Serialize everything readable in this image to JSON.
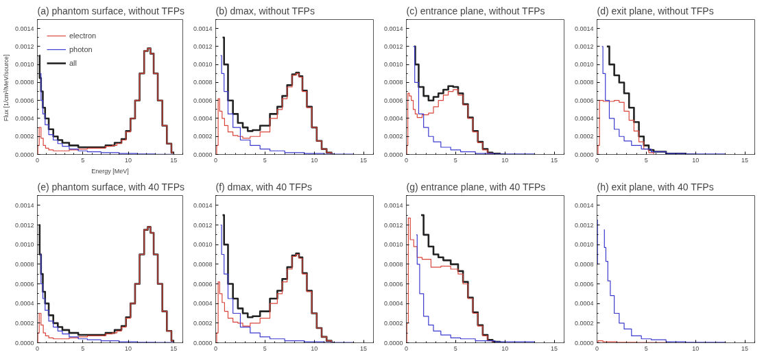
{
  "chart_data": [
    {
      "type": "step",
      "title": "(a) phantom surface, without TFPs",
      "xlabel": "Energy [MeV]",
      "ylabel": "Flux  [1/cm²/MeV/source]",
      "legend": "top left",
      "xlim": [
        0,
        16
      ],
      "xticks": [
        0,
        5,
        10,
        15
      ],
      "ylim": [
        0,
        0.0015
      ],
      "yticks": [
        {
          "value": 0,
          "label": "0.0000"
        },
        {
          "value": 0.0002,
          "label": "0.0002"
        },
        {
          "value": 0.0004,
          "label": "0.0004"
        },
        {
          "value": 0.0006,
          "label": "0.0006"
        },
        {
          "value": 0.0008,
          "label": "0.0008"
        },
        {
          "value": 0.001,
          "label": "0.0010"
        },
        {
          "value": 0.0012,
          "label": "0.0012"
        },
        {
          "value": 0.0014,
          "label": "0.0014"
        }
      ],
      "series": [
        {
          "name": "electron",
          "color": "#d9453a",
          "x": [
            0,
            0.1,
            0.3,
            0.5,
            0.8,
            1,
            1.5,
            2,
            3,
            4,
            5,
            6,
            7,
            8,
            8.5,
            9,
            9.5,
            10,
            10.5,
            11,
            11.5,
            12,
            12.3,
            12.6,
            13,
            13.5,
            14,
            14.5,
            15
          ],
          "values": [
            0,
            0.0001,
            0.0003,
            0.00018,
            0.0001,
            7e-05,
            5e-05,
            4e-05,
            4e-05,
            5e-05,
            6e-05,
            7e-05,
            7e-05,
            9e-05,
            0.0001,
            0.00012,
            0.00016,
            0.00025,
            0.0004,
            0.0006,
            0.0009,
            0.00115,
            0.00118,
            0.00112,
            0.0009,
            0.0006,
            0.00032,
            0.00012,
            2e-05
          ]
        },
        {
          "name": "photon",
          "color": "#3a3ad0",
          "x": [
            0.3,
            0.5,
            0.7,
            1,
            1.5,
            2,
            2.5,
            3,
            4,
            5,
            6,
            8,
            10,
            12,
            14,
            16
          ],
          "values": [
            0.0009,
            0.0006,
            0.00045,
            0.00033,
            0.00022,
            0.00016,
            0.00012,
            9e-05,
            6e-05,
            4e-05,
            3e-05,
            2e-05,
            1e-05,
            5e-06,
            2e-06,
            0
          ]
        },
        {
          "name": "all",
          "color": "#222222",
          "x": [
            0.2,
            0.3,
            0.5,
            0.7,
            1,
            1.5,
            2,
            2.5,
            3,
            4,
            5,
            6,
            7,
            8,
            9,
            9.5,
            10,
            10.5,
            11,
            11.5,
            12,
            12.3,
            12.6,
            13,
            13.5,
            14,
            14.5,
            15
          ],
          "values": [
            0.0011,
            0.00085,
            0.0007,
            0.00052,
            0.0004,
            0.00028,
            0.0002,
            0.00016,
            0.00013,
            0.0001,
            8e-05,
            8e-05,
            8e-05,
            0.0001,
            0.00013,
            0.00017,
            0.00026,
            0.0004,
            0.0006,
            0.0009,
            0.00115,
            0.00118,
            0.00112,
            0.0009,
            0.0006,
            0.00032,
            0.00012,
            2e-05
          ]
        }
      ]
    },
    {
      "type": "step",
      "title": "(b) dmax, without TFPs",
      "xlim": [
        0,
        16
      ],
      "xticks": [
        0,
        5,
        10,
        15
      ],
      "ylim": [
        0,
        0.0015
      ],
      "yticks": [
        {
          "value": 0,
          "label": "0.0000"
        },
        {
          "value": 0.0002,
          "label": "0.0002"
        },
        {
          "value": 0.0004,
          "label": "0.0004"
        },
        {
          "value": 0.0006,
          "label": "0.0006"
        },
        {
          "value": 0.0008,
          "label": "0.0008"
        },
        {
          "value": 0.001,
          "label": "0.0010"
        },
        {
          "value": 0.0012,
          "label": "0.0012"
        },
        {
          "value": 0.0014,
          "label": "0.0014"
        }
      ],
      "series": [
        {
          "color": "#d9453a",
          "x": [
            0,
            0.2,
            0.3,
            0.5,
            0.8,
            1,
            1.5,
            2,
            2.5,
            3,
            4,
            5,
            6,
            6.5,
            7,
            7.5,
            8,
            8.3,
            8.6,
            9,
            9.5,
            10,
            10.5,
            11,
            11.5,
            12
          ],
          "values": [
            0,
            0.0001,
            0.00062,
            0.00048,
            0.0004,
            0.00032,
            0.00025,
            0.00021,
            0.0002,
            0.00018,
            0.0002,
            0.00025,
            0.0004,
            0.0005,
            0.00062,
            0.00075,
            0.00088,
            0.0009,
            0.00086,
            0.0007,
            0.00052,
            0.0003,
            0.00015,
            6e-05,
            2e-05,
            0
          ]
        },
        {
          "color": "#3a3ad0",
          "x": [
            0.5,
            0.7,
            1,
            1.5,
            2,
            3,
            4,
            5,
            6,
            8,
            10,
            12,
            16
          ],
          "values": [
            0.0011,
            0.0009,
            0.0007,
            0.00045,
            0.0003,
            0.00016,
            0.0001,
            6e-05,
            4e-05,
            2e-05,
            1e-05,
            3e-06,
            0
          ]
        },
        {
          "color": "#222222",
          "x": [
            0.7,
            1,
            1.5,
            2,
            2.5,
            3,
            3.5,
            4,
            5,
            6,
            6.5,
            7,
            7.5,
            8,
            8.3,
            8.6,
            9,
            9.5,
            10,
            10.5,
            11,
            11.5,
            12
          ],
          "values": [
            0.0013,
            0.001,
            0.0006,
            0.00045,
            0.00035,
            0.0003,
            0.00026,
            0.00027,
            0.00032,
            0.00045,
            0.00053,
            0.00065,
            0.00077,
            0.00089,
            0.00091,
            0.00087,
            0.00071,
            0.00053,
            0.0003,
            0.00015,
            6e-05,
            2e-05,
            0
          ]
        }
      ]
    },
    {
      "type": "step",
      "title": "(c) entrance plane, without TFPs",
      "xlim": [
        0,
        16
      ],
      "xticks": [
        0,
        5,
        10,
        15
      ],
      "ylim": [
        0,
        0.0015
      ],
      "yticks": [
        {
          "value": 0,
          "label": "0.0000"
        },
        {
          "value": 0.0002,
          "label": "0.0002"
        },
        {
          "value": 0.0004,
          "label": "0.0004"
        },
        {
          "value": 0.0006,
          "label": "0.0006"
        },
        {
          "value": 0.0008,
          "label": "0.0008"
        },
        {
          "value": 0.001,
          "label": "0.0010"
        },
        {
          "value": 0.0012,
          "label": "0.0012"
        },
        {
          "value": 0.0014,
          "label": "0.0014"
        }
      ],
      "series": [
        {
          "color": "#d9453a",
          "x": [
            0,
            0.1,
            0.2,
            0.4,
            0.6,
            0.8,
            1,
            1.2,
            2,
            2.5,
            3,
            3.5,
            4,
            4.5,
            5,
            5.5,
            6,
            6.5,
            7,
            7.5,
            8,
            8.5,
            9
          ],
          "values": [
            0,
            0.0001,
            0.00068,
            0.00065,
            0.0006,
            0.0005,
            0.00045,
            0.00041,
            0.00044,
            0.00046,
            0.00053,
            0.0006,
            0.00066,
            0.0007,
            0.00072,
            0.00066,
            0.00055,
            0.0004,
            0.00025,
            0.00013,
            5e-05,
            1e-05,
            0
          ]
        },
        {
          "color": "#3a3ad0",
          "x": [
            0.7,
            1,
            1.5,
            2,
            2.5,
            3,
            4,
            5,
            6,
            8,
            10,
            16
          ],
          "values": [
            0.0012,
            0.0008,
            0.00045,
            0.0003,
            0.0002,
            0.00014,
            8e-05,
            5e-05,
            3e-05,
            1e-05,
            5e-06,
            0
          ]
        },
        {
          "color": "#222222",
          "x": [
            0.8,
            1,
            1.5,
            2,
            2.5,
            3,
            3.5,
            4,
            4.5,
            5,
            5.5,
            6,
            6.5,
            7,
            7.5,
            8,
            8.5,
            9,
            10
          ],
          "values": [
            0.0012,
            0.001,
            0.00075,
            0.00065,
            0.0006,
            0.00064,
            0.00068,
            0.00072,
            0.00076,
            0.00075,
            0.00068,
            0.00056,
            0.00041,
            0.00026,
            0.00014,
            6e-05,
            2e-05,
            1e-05,
            0
          ]
        }
      ]
    },
    {
      "type": "step",
      "title": "(d) exit plane, without TFPs",
      "xlim": [
        0,
        16
      ],
      "xticks": [
        0,
        5,
        10,
        15
      ],
      "ylim": [
        0,
        0.0015
      ],
      "yticks": [
        {
          "value": 0,
          "label": "0.0000"
        },
        {
          "value": 0.0002,
          "label": "0.0002"
        },
        {
          "value": 0.0004,
          "label": "0.0004"
        },
        {
          "value": 0.0006,
          "label": "0.0006"
        },
        {
          "value": 0.0008,
          "label": "0.0008"
        },
        {
          "value": 0.001,
          "label": "0.0010"
        },
        {
          "value": 0.0012,
          "label": "0.0012"
        },
        {
          "value": 0.0014,
          "label": "0.0014"
        }
      ],
      "series": [
        {
          "color": "#d9453a",
          "x": [
            0,
            0.2,
            0.3,
            1,
            1.5,
            2,
            2.5,
            3,
            3.5,
            4,
            4.5,
            5,
            5.5,
            6
          ],
          "values": [
            0,
            0.0001,
            0.0006,
            0.00059,
            0.00059,
            0.0006,
            0.00058,
            0.00048,
            0.00038,
            0.00026,
            0.00014,
            6e-05,
            2e-05,
            0
          ]
        },
        {
          "color": "#3a3ad0",
          "x": [
            0.5,
            0.7,
            1,
            1.5,
            2,
            2.5,
            3,
            4,
            5,
            6,
            8,
            10,
            16
          ],
          "values": [
            0.0012,
            0.0009,
            0.0006,
            0.0004,
            0.00028,
            0.0002,
            0.00015,
            0.0001,
            6e-05,
            3e-05,
            1e-05,
            5e-06,
            0
          ]
        },
        {
          "color": "#222222",
          "x": [
            1,
            1.5,
            2,
            2.5,
            3,
            3.5,
            4,
            4.5,
            5,
            5.5,
            6,
            8,
            10
          ],
          "values": [
            0.0012,
            0.001,
            0.00088,
            0.0008,
            0.00068,
            0.00052,
            0.00036,
            0.0002,
            0.0001,
            5e-05,
            3e-05,
            1e-05,
            0
          ]
        }
      ]
    },
    {
      "type": "step",
      "title": "(e) phantom surface, with 40 TFPs",
      "xlim": [
        0,
        16
      ],
      "xticks": [
        0,
        5,
        10,
        15
      ],
      "ylim": [
        0,
        0.0015
      ],
      "yticks": [
        {
          "value": 0,
          "label": "0.0000"
        },
        {
          "value": 0.0002,
          "label": "0.0002"
        },
        {
          "value": 0.0004,
          "label": "0.0004"
        },
        {
          "value": 0.0006,
          "label": "0.0006"
        },
        {
          "value": 0.0008,
          "label": "0.0008"
        },
        {
          "value": 0.001,
          "label": "0.0010"
        },
        {
          "value": 0.0012,
          "label": "0.0012"
        },
        {
          "value": 0.0014,
          "label": "0.0014"
        }
      ],
      "series": [
        {
          "color": "#d9453a",
          "x": [
            0,
            0.1,
            0.3,
            0.5,
            0.8,
            1,
            1.5,
            2,
            3,
            4,
            5,
            6,
            7,
            8,
            8.5,
            9,
            9.5,
            10,
            10.5,
            11,
            11.5,
            12,
            12.3,
            12.6,
            13,
            13.5,
            14,
            14.5,
            15
          ],
          "values": [
            0,
            0.0001,
            0.0003,
            0.00018,
            0.0001,
            7e-05,
            5e-05,
            4e-05,
            4e-05,
            5e-05,
            6e-05,
            7e-05,
            7e-05,
            9e-05,
            0.0001,
            0.00012,
            0.00016,
            0.00025,
            0.0004,
            0.0006,
            0.0009,
            0.00115,
            0.00118,
            0.00112,
            0.0009,
            0.0006,
            0.00032,
            0.00012,
            2e-05
          ]
        },
        {
          "color": "#3a3ad0",
          "x": [
            0.3,
            0.5,
            0.7,
            1,
            1.5,
            2,
            2.5,
            3,
            4,
            5,
            6,
            8,
            10,
            12,
            14,
            16
          ],
          "values": [
            0.0009,
            0.0006,
            0.00045,
            0.00033,
            0.00022,
            0.00016,
            0.00012,
            9e-05,
            6e-05,
            4e-05,
            3e-05,
            2e-05,
            1e-05,
            5e-06,
            2e-06,
            0
          ]
        },
        {
          "color": "#222222",
          "x": [
            0.2,
            0.3,
            0.5,
            0.7,
            1,
            1.5,
            2,
            2.5,
            3,
            4,
            5,
            6,
            7,
            8,
            9,
            9.5,
            10,
            10.5,
            11,
            11.5,
            12,
            12.3,
            12.6,
            13,
            13.5,
            14,
            14.5,
            15
          ],
          "values": [
            0.0012,
            0.0009,
            0.0007,
            0.00052,
            0.0004,
            0.00028,
            0.0002,
            0.00016,
            0.00013,
            0.0001,
            8e-05,
            8e-05,
            8e-05,
            0.0001,
            0.00013,
            0.00017,
            0.00026,
            0.0004,
            0.0006,
            0.0009,
            0.00115,
            0.00118,
            0.00112,
            0.0009,
            0.0006,
            0.00032,
            0.00012,
            2e-05
          ]
        }
      ]
    },
    {
      "type": "step",
      "title": "(f) dmax, with 40 TFPs",
      "xlim": [
        0,
        16
      ],
      "xticks": [
        0,
        5,
        10,
        15
      ],
      "ylim": [
        0,
        0.0015
      ],
      "yticks": [
        {
          "value": 0,
          "label": "0.0000"
        },
        {
          "value": 0.0002,
          "label": "0.0002"
        },
        {
          "value": 0.0004,
          "label": "0.0004"
        },
        {
          "value": 0.0006,
          "label": "0.0006"
        },
        {
          "value": 0.0008,
          "label": "0.0008"
        },
        {
          "value": 0.001,
          "label": "0.0010"
        },
        {
          "value": 0.0012,
          "label": "0.0012"
        },
        {
          "value": 0.0014,
          "label": "0.0014"
        }
      ],
      "series": [
        {
          "color": "#d9453a",
          "x": [
            0,
            0.2,
            0.3,
            0.5,
            0.8,
            1,
            1.5,
            2,
            2.5,
            3,
            4,
            5,
            6,
            6.5,
            7,
            7.5,
            8,
            8.3,
            8.6,
            9,
            9.5,
            10,
            10.5,
            11,
            11.5,
            12
          ],
          "values": [
            0,
            0.0001,
            0.00062,
            0.0005,
            0.00041,
            0.00032,
            0.00025,
            0.00021,
            0.0002,
            0.00017,
            0.0002,
            0.00025,
            0.0004,
            0.0005,
            0.00062,
            0.00075,
            0.00088,
            0.0009,
            0.00086,
            0.0007,
            0.00052,
            0.0003,
            0.00015,
            6e-05,
            2e-05,
            0
          ]
        },
        {
          "color": "#3a3ad0",
          "x": [
            0.5,
            0.7,
            1,
            1.5,
            2,
            3,
            4,
            5,
            6,
            8,
            10,
            12,
            16
          ],
          "values": [
            0.0012,
            0.0009,
            0.0007,
            0.00045,
            0.0003,
            0.00016,
            0.0001,
            6e-05,
            4e-05,
            2e-05,
            1e-05,
            3e-06,
            0
          ]
        },
        {
          "color": "#222222",
          "x": [
            0.7,
            1,
            1.5,
            2,
            2.5,
            3,
            3.5,
            4,
            5,
            6,
            6.5,
            7,
            7.5,
            8,
            8.3,
            8.6,
            9,
            9.5,
            10,
            10.5,
            11,
            11.5,
            12
          ],
          "values": [
            0.0013,
            0.001,
            0.0006,
            0.00045,
            0.00035,
            0.0003,
            0.00026,
            0.00027,
            0.00032,
            0.00045,
            0.00053,
            0.00065,
            0.00077,
            0.00089,
            0.00091,
            0.00087,
            0.00071,
            0.00053,
            0.0003,
            0.00015,
            6e-05,
            2e-05,
            0
          ]
        }
      ]
    },
    {
      "type": "step",
      "title": "(g) entrance plane, with 40 TFPs",
      "xlim": [
        0,
        16
      ],
      "xticks": [
        0,
        5,
        10,
        15
      ],
      "ylim": [
        0,
        0.0015
      ],
      "yticks": [
        {
          "value": 0,
          "label": "0.0000"
        },
        {
          "value": 0.0002,
          "label": "0.0002"
        },
        {
          "value": 0.0004,
          "label": "0.0004"
        },
        {
          "value": 0.0006,
          "label": "0.0006"
        },
        {
          "value": 0.0008,
          "label": "0.0008"
        },
        {
          "value": 0.001,
          "label": "0.0010"
        },
        {
          "value": 0.0012,
          "label": "0.0012"
        },
        {
          "value": 0.0014,
          "label": "0.0014"
        }
      ],
      "series": [
        {
          "color": "#d9453a",
          "x": [
            0,
            0.1,
            0.3,
            0.5,
            1,
            1.2,
            2,
            3,
            4,
            5,
            5.5,
            6,
            6.5,
            7,
            7.5,
            8,
            8.5,
            9
          ],
          "values": [
            0,
            0.0002,
            0.00127,
            0.00105,
            0.00098,
            0.00087,
            0.00085,
            0.00077,
            0.00078,
            0.00075,
            0.0007,
            0.0006,
            0.00045,
            0.0003,
            0.00017,
            7e-05,
            2e-05,
            0
          ]
        },
        {
          "color": "#3a3ad0",
          "x": [
            1,
            1.2,
            1.5,
            2,
            2.5,
            3,
            4,
            5,
            6,
            8,
            10,
            16
          ],
          "values": [
            0.0011,
            0.0008,
            0.0005,
            0.00027,
            0.00018,
            0.00012,
            8e-05,
            5e-05,
            4e-05,
            2e-05,
            1e-05,
            0
          ]
        },
        {
          "color": "#222222",
          "x": [
            1.5,
            2,
            2.5,
            3,
            3.5,
            4,
            5,
            5.5,
            6,
            6.5,
            7,
            7.5,
            8,
            8.5,
            9,
            10
          ],
          "values": [
            0.0013,
            0.0011,
            0.00098,
            0.0009,
            0.00087,
            0.00084,
            0.0008,
            0.00073,
            0.00062,
            0.00046,
            0.00031,
            0.00018,
            8e-05,
            3e-05,
            1e-05,
            0
          ]
        }
      ]
    },
    {
      "type": "step",
      "title": "(h) exit plane, with 40 TFPs",
      "xlim": [
        0,
        16
      ],
      "xticks": [
        0,
        5,
        10,
        15
      ],
      "ylim": [
        0,
        0.0015
      ],
      "yticks": [
        {
          "value": 0,
          "label": "0.0000"
        },
        {
          "value": 0.0002,
          "label": "0.0002"
        },
        {
          "value": 0.0004,
          "label": "0.0004"
        },
        {
          "value": 0.0006,
          "label": "0.0006"
        },
        {
          "value": 0.0008,
          "label": "0.0008"
        },
        {
          "value": 0.001,
          "label": "0.0010"
        },
        {
          "value": 0.0012,
          "label": "0.0012"
        },
        {
          "value": 0.0014,
          "label": "0.0014"
        }
      ],
      "series": [
        {
          "color": "#d9453a",
          "x": [
            0,
            0.2,
            1,
            3,
            5,
            10
          ],
          "values": [
            0,
            2e-05,
            1e-05,
            5e-06,
            3e-06,
            0
          ]
        },
        {
          "color": "#3a3ad0",
          "x": [
            0,
            0.1,
            0.4,
            0.7,
            0.8,
            1,
            1.2,
            1.5,
            2,
            2.5,
            3,
            4,
            5,
            6,
            8,
            10,
            16
          ],
          "values": [
            0.0008,
            0.00125,
            null,
            0.00115,
            0.00097,
            0.00083,
            0.00063,
            0.00048,
            0.0003,
            0.0002,
            0.00014,
            7e-05,
            4e-05,
            3e-05,
            1e-05,
            5e-06,
            0
          ]
        }
      ]
    }
  ]
}
